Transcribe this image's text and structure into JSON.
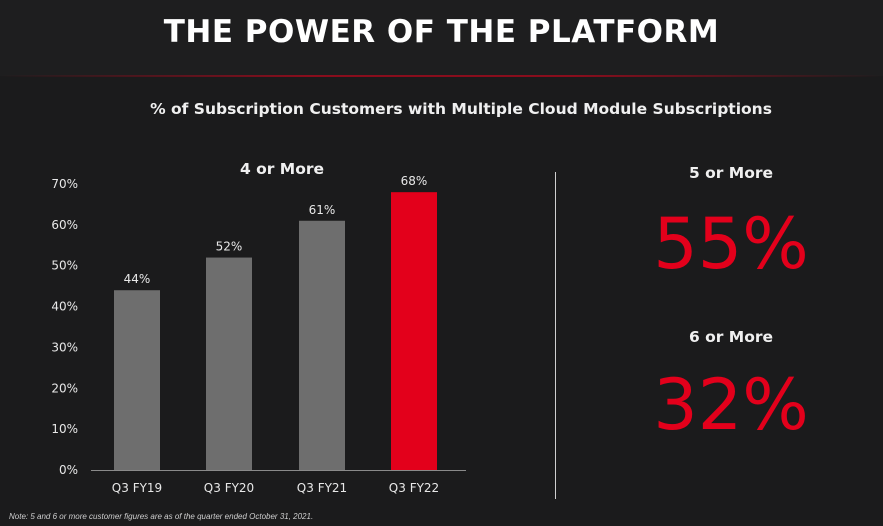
{
  "header": {
    "title": "THE POWER OF THE PLATFORM"
  },
  "subtitle": "% of Subscription Customers with Multiple Cloud Module Subscriptions",
  "chart_data": {
    "type": "bar",
    "title": "4 or More",
    "categories": [
      "Q3 FY19",
      "Q3 FY20",
      "Q3 FY21",
      "Q3 FY22"
    ],
    "values": [
      44,
      52,
      61,
      68
    ],
    "data_labels": [
      "44%",
      "52%",
      "61%",
      "68%"
    ],
    "ylim": [
      0,
      70
    ],
    "yticks": [
      0,
      10,
      20,
      30,
      40,
      50,
      60,
      70
    ],
    "ytick_labels": [
      "0%",
      "10%",
      "20%",
      "30%",
      "40%",
      "50%",
      "60%",
      "70%"
    ],
    "xlabel": "",
    "ylabel": "",
    "grid": false,
    "colors": [
      "#6e6e6e",
      "#6e6e6e",
      "#6e6e6e",
      "#e3001b"
    ]
  },
  "metrics": [
    {
      "label": "5 or More",
      "value": "55%"
    },
    {
      "label": "6 or More",
      "value": "32%"
    }
  ],
  "note": "Note: 5 and 6 or more customer figures are as of the quarter ended October 31, 2021.",
  "colors": {
    "accent": "#e3001b",
    "bar_gray": "#6e6e6e",
    "background": "#1b1b1c"
  }
}
